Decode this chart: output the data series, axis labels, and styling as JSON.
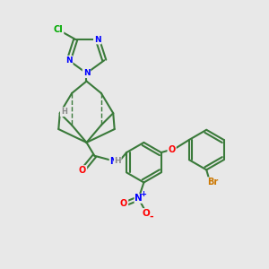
{
  "bg_color": "#e8e8e8",
  "bond_color": "#3a7a3a",
  "bond_width": 1.5,
  "atom_colors": {
    "N": "#0000ff",
    "O": "#ff0000",
    "Cl": "#00aa00",
    "Br": "#cc7700",
    "H": "#888888",
    "C": "#3a7a3a"
  },
  "title": "",
  "figsize": [
    3.0,
    3.0
  ],
  "dpi": 100
}
